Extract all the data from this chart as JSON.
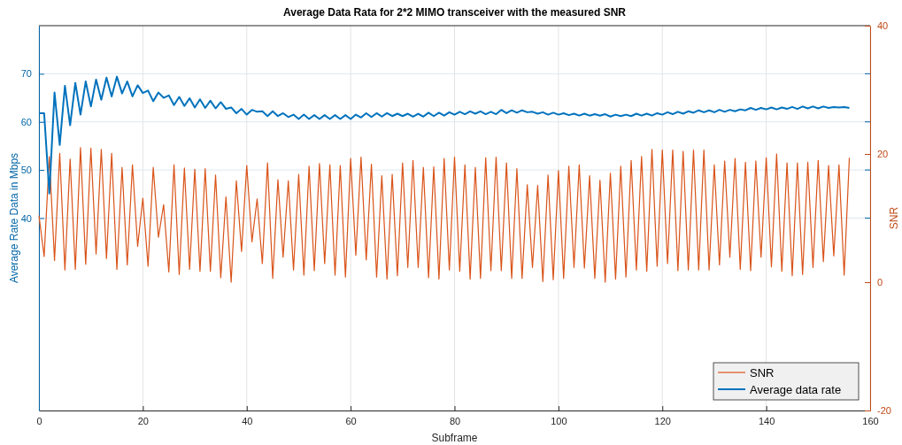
{
  "chart_data": {
    "type": "line",
    "title": "Average Data Rata for 2*2 MIMO transceiver with the measured SNR",
    "xlabel": "Subframe",
    "ylabel": "Average Rate Data in Mbps",
    "y2label": "SNR",
    "x": [
      0,
      1,
      2,
      3,
      4,
      5,
      6,
      7,
      8,
      9,
      10,
      11,
      12,
      13,
      14,
      15,
      16,
      17,
      18,
      19,
      20,
      21,
      22,
      23,
      24,
      25,
      26,
      27,
      28,
      29,
      30,
      31,
      32,
      33,
      34,
      35,
      36,
      37,
      38,
      39,
      40,
      41,
      42,
      43,
      44,
      45,
      46,
      47,
      48,
      49,
      50,
      51,
      52,
      53,
      54,
      55,
      56,
      57,
      58,
      59,
      60,
      61,
      62,
      63,
      64,
      65,
      66,
      67,
      68,
      69,
      70,
      71,
      72,
      73,
      74,
      75,
      76,
      77,
      78,
      79,
      80,
      81,
      82,
      83,
      84,
      85,
      86,
      87,
      88,
      89,
      90,
      91,
      92,
      93,
      94,
      95,
      96,
      97,
      98,
      99,
      100,
      101,
      102,
      103,
      104,
      105,
      106,
      107,
      108,
      109,
      110,
      111,
      112,
      113,
      114,
      115,
      116,
      117,
      118,
      119,
      120,
      121,
      122,
      123,
      124,
      125,
      126,
      127,
      128,
      129,
      130,
      131,
      132,
      133,
      134,
      135,
      136,
      137,
      138,
      139,
      140,
      141,
      142,
      143,
      144,
      145,
      146,
      147,
      148,
      149,
      150,
      151,
      152,
      153,
      154,
      155,
      156
    ],
    "xlim": [
      0,
      160
    ],
    "xticks": [
      0,
      20,
      40,
      60,
      80,
      100,
      120,
      140,
      160
    ],
    "ylim": [
      0,
      80
    ],
    "yticks": [
      40,
      50,
      60,
      70
    ],
    "y2lim": [
      -20,
      40
    ],
    "y2ticks": [
      -20,
      0,
      20,
      40
    ],
    "grid": true,
    "legend": "bottom right",
    "marker": "none",
    "line_style": "solid",
    "series": [
      {
        "name": "SNR",
        "color": "#d95319",
        "axis": "y2",
        "values": [
          10.4,
          4.0,
          19.6,
          3.4,
          20.1,
          1.9,
          19.2,
          2.0,
          21.0,
          2.8,
          20.9,
          4.4,
          20.7,
          3.7,
          20.1,
          2.0,
          17.9,
          2.7,
          18.3,
          5.6,
          13.1,
          2.5,
          17.9,
          7.0,
          12.1,
          1.6,
          18.3,
          1.2,
          17.8,
          2.0,
          17.6,
          1.7,
          17.7,
          1.7,
          16.7,
          0.7,
          13.3,
          0.0,
          15.8,
          4.8,
          18.2,
          6.3,
          13.0,
          2.9,
          18.6,
          0.6,
          16.0,
          3.9,
          15.8,
          1.9,
          16.8,
          1.1,
          18.1,
          1.8,
          18.5,
          2.9,
          18.3,
          1.1,
          18.2,
          0.8,
          19.3,
          4.2,
          19.5,
          3.5,
          18.4,
          0.8,
          16.6,
          0.5,
          16.8,
          1.0,
          18.6,
          2.3,
          19.0,
          2.3,
          17.9,
          0.7,
          18.0,
          0.5,
          19.3,
          1.9,
          19.5,
          1.7,
          18.3,
          0.5,
          17.9,
          0.6,
          19.4,
          1.8,
          19.5,
          1.8,
          18.6,
          0.6,
          17.7,
          0.6,
          15.2,
          2.3,
          15.1,
          0.1,
          16.7,
          0.4,
          17.4,
          0.6,
          18.1,
          2.3,
          18.3,
          2.2,
          16.6,
          0.6,
          15.9,
          0.0,
          17.0,
          0.5,
          18.1,
          0.8,
          19.0,
          1.9,
          19.6,
          1.7,
          20.7,
          2.5,
          20.6,
          2.9,
          20.6,
          1.8,
          20.4,
          1.9,
          20.6,
          1.9,
          20.6,
          1.9,
          18.3,
          2.7,
          18.9,
          3.9,
          19.3,
          2.0,
          18.7,
          1.8,
          18.9,
          3.9,
          19.4,
          2.4,
          20.0,
          1.7,
          18.6,
          1.0,
          18.6,
          1.2,
          18.7,
          2.3,
          19.0,
          3.2,
          18.2,
          4.1,
          18.3,
          1.1,
          19.4
        ]
      },
      {
        "name": "Average data rate",
        "color": "#0072bd",
        "values": [
          61.8,
          61.8,
          45.1,
          66.1,
          55.2,
          67.5,
          59.3,
          68.1,
          61.5,
          68.4,
          63.2,
          68.8,
          64.6,
          69.2,
          65.3,
          69.4,
          65.9,
          68.4,
          65.3,
          67.6,
          66.0,
          66.5,
          64.3,
          66.1,
          65.0,
          65.5,
          63.5,
          65.2,
          63.3,
          64.9,
          63.0,
          64.7,
          62.9,
          64.4,
          62.8,
          64.1,
          62.7,
          63.0,
          61.8,
          62.7,
          61.5,
          62.5,
          62.1,
          62.2,
          61.2,
          62.2,
          61.2,
          61.8,
          61.0,
          61.5,
          60.6,
          61.5,
          60.6,
          61.4,
          60.6,
          61.4,
          60.6,
          61.4,
          60.6,
          61.4,
          60.6,
          61.5,
          60.9,
          61.8,
          61.0,
          61.8,
          61.1,
          61.8,
          61.2,
          61.7,
          61.2,
          61.7,
          61.1,
          61.7,
          61.1,
          61.9,
          61.2,
          61.9,
          61.3,
          62.0,
          61.5,
          62.1,
          61.6,
          62.2,
          61.7,
          62.2,
          61.6,
          62.1,
          61.6,
          62.5,
          61.8,
          62.4,
          61.9,
          62.4,
          62.0,
          62.1,
          61.7,
          62.0,
          61.5,
          61.9,
          61.5,
          61.8,
          61.4,
          61.7,
          61.3,
          61.7,
          61.3,
          61.6,
          61.3,
          61.6,
          61.1,
          61.5,
          61.2,
          61.5,
          61.2,
          61.7,
          61.3,
          61.7,
          61.3,
          61.8,
          61.5,
          62.0,
          61.6,
          62.1,
          61.7,
          62.2,
          61.9,
          62.4,
          62.0,
          62.4,
          62.0,
          62.5,
          62.1,
          62.5,
          62.2,
          62.6,
          62.4,
          62.9,
          62.5,
          62.9,
          62.6,
          63.0,
          62.6,
          63.0,
          62.7,
          63.1,
          62.7,
          63.2,
          62.8,
          63.2,
          62.8,
          63.2,
          62.9,
          63.1,
          63.0,
          63.1,
          62.9
        ]
      }
    ]
  }
}
